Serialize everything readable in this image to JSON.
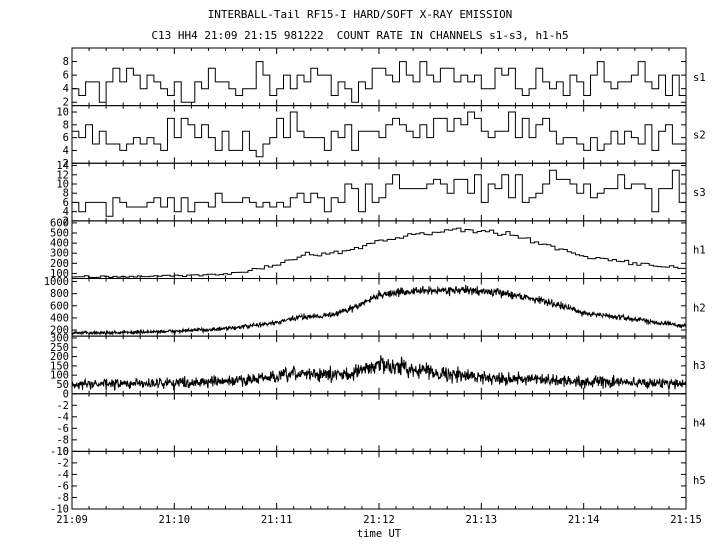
{
  "title": "INTERBALL-Tail RF15-I HARD/SOFT X-RAY EMISSION",
  "subtitle": "C13 HH4 21:09 21:15 981222  COUNT RATE IN CHANNELS s1-s3, h1-h5",
  "chart_data": {
    "type": "line",
    "title": "INTERBALL-Tail RF15-I HARD/SOFT X-RAY EMISSION",
    "subtitle": "C13 HH4 21:09 21:15 981222  COUNT RATE IN CHANNELS s1-s3, h1-h5",
    "xlabel": "time UT",
    "x_ticks": [
      "21:09",
      "21:10",
      "21:11",
      "21:12",
      "21:13",
      "21:14",
      "21:15"
    ],
    "xlim": [
      "21:09",
      "21:15"
    ],
    "grid": false,
    "panels": [
      {
        "name": "s1",
        "style": "step",
        "ylim": [
          1.5,
          10
        ],
        "y_ticks": [
          2,
          4,
          6,
          8
        ],
        "x": [
          "21:09",
          "21:09:30",
          "21:10",
          "21:10:30",
          "21:11",
          "21:11:30",
          "21:12",
          "21:12:30",
          "21:13",
          "21:13:30",
          "21:14",
          "21:14:30",
          "21:15"
        ],
        "y": [
          4,
          5,
          4.5,
          5,
          5,
          5,
          5.5,
          6,
          5.5,
          5.5,
          5,
          5,
          5
        ]
      },
      {
        "name": "s2",
        "style": "step",
        "ylim": [
          2,
          11
        ],
        "y_ticks": [
          2,
          4,
          6,
          8,
          10
        ],
        "x": [
          "21:09",
          "21:09:30",
          "21:10",
          "21:10:30",
          "21:11",
          "21:11:30",
          "21:12",
          "21:12:30",
          "21:13",
          "21:13:30",
          "21:14",
          "21:14:30",
          "21:15"
        ],
        "y": [
          6,
          6,
          6,
          6.5,
          6.5,
          6.5,
          6.5,
          7,
          7,
          7,
          6.5,
          6.5,
          6.5
        ]
      },
      {
        "name": "s3",
        "style": "step",
        "ylim": [
          2,
          14.5
        ],
        "y_ticks": [
          2,
          4,
          6,
          8,
          10,
          12,
          14
        ],
        "x": [
          "21:09",
          "21:09:30",
          "21:10",
          "21:10:30",
          "21:11",
          "21:11:30",
          "21:12",
          "21:12:30",
          "21:13",
          "21:13:30",
          "21:14",
          "21:14:30",
          "21:15"
        ],
        "y": [
          5,
          5,
          5.5,
          6,
          6.5,
          7,
          8.5,
          10,
          10,
          9.5,
          8.5,
          8,
          7.5
        ]
      },
      {
        "name": "h1",
        "style": "step",
        "ylim": [
          50,
          620
        ],
        "y_ticks": [
          100,
          200,
          300,
          400,
          500,
          600
        ],
        "x": [
          "21:09",
          "21:09:30",
          "21:10",
          "21:10:30",
          "21:11",
          "21:11:15",
          "21:11:30",
          "21:11:45",
          "21:12",
          "21:12:15",
          "21:12:30",
          "21:12:45",
          "21:13",
          "21:13:15",
          "21:13:30",
          "21:13:45",
          "21:14",
          "21:14:30",
          "21:15"
        ],
        "y": [
          70,
          65,
          75,
          90,
          180,
          280,
          300,
          340,
          420,
          470,
          500,
          530,
          520,
          490,
          420,
          350,
          270,
          200,
          150
        ]
      },
      {
        "name": "h2",
        "style": "noisy",
        "ylim": [
          100,
          1050
        ],
        "y_ticks": [
          200,
          400,
          600,
          800,
          1000
        ],
        "x": [
          "21:09",
          "21:09:30",
          "21:10",
          "21:10:30",
          "21:11",
          "21:11:15",
          "21:11:30",
          "21:11:45",
          "21:12",
          "21:12:15",
          "21:12:30",
          "21:12:45",
          "21:13",
          "21:13:15",
          "21:13:30",
          "21:13:45",
          "21:14",
          "21:14:30",
          "21:15"
        ],
        "y": [
          150,
          160,
          180,
          220,
          320,
          420,
          440,
          560,
          780,
          830,
          850,
          860,
          840,
          800,
          720,
          620,
          480,
          380,
          260
        ]
      },
      {
        "name": "h3",
        "style": "noisy",
        "ylim": [
          0,
          310
        ],
        "y_ticks": [
          50,
          100,
          150,
          200,
          250,
          300
        ],
        "x": [
          "21:09",
          "21:09:30",
          "21:10",
          "21:10:30",
          "21:11",
          "21:11:15",
          "21:11:30",
          "21:11:45",
          "21:12",
          "21:12:15",
          "21:12:30",
          "21:12:45",
          "21:13",
          "21:13:30",
          "21:14",
          "21:14:30",
          "21:15"
        ],
        "y": [
          50,
          52,
          60,
          65,
          90,
          110,
          100,
          110,
          160,
          140,
          120,
          100,
          90,
          75,
          65,
          60,
          55
        ]
      },
      {
        "name": "h4",
        "style": "empty",
        "ylim": [
          -10,
          0
        ],
        "y_ticks": [
          -10,
          -8,
          -6,
          -4,
          -2,
          0
        ],
        "x": [],
        "y": []
      },
      {
        "name": "h5",
        "style": "empty",
        "ylim": [
          -10,
          0
        ],
        "y_ticks": [
          -10,
          -8,
          -6,
          -4,
          -2,
          0
        ],
        "x": [],
        "y": []
      }
    ]
  }
}
